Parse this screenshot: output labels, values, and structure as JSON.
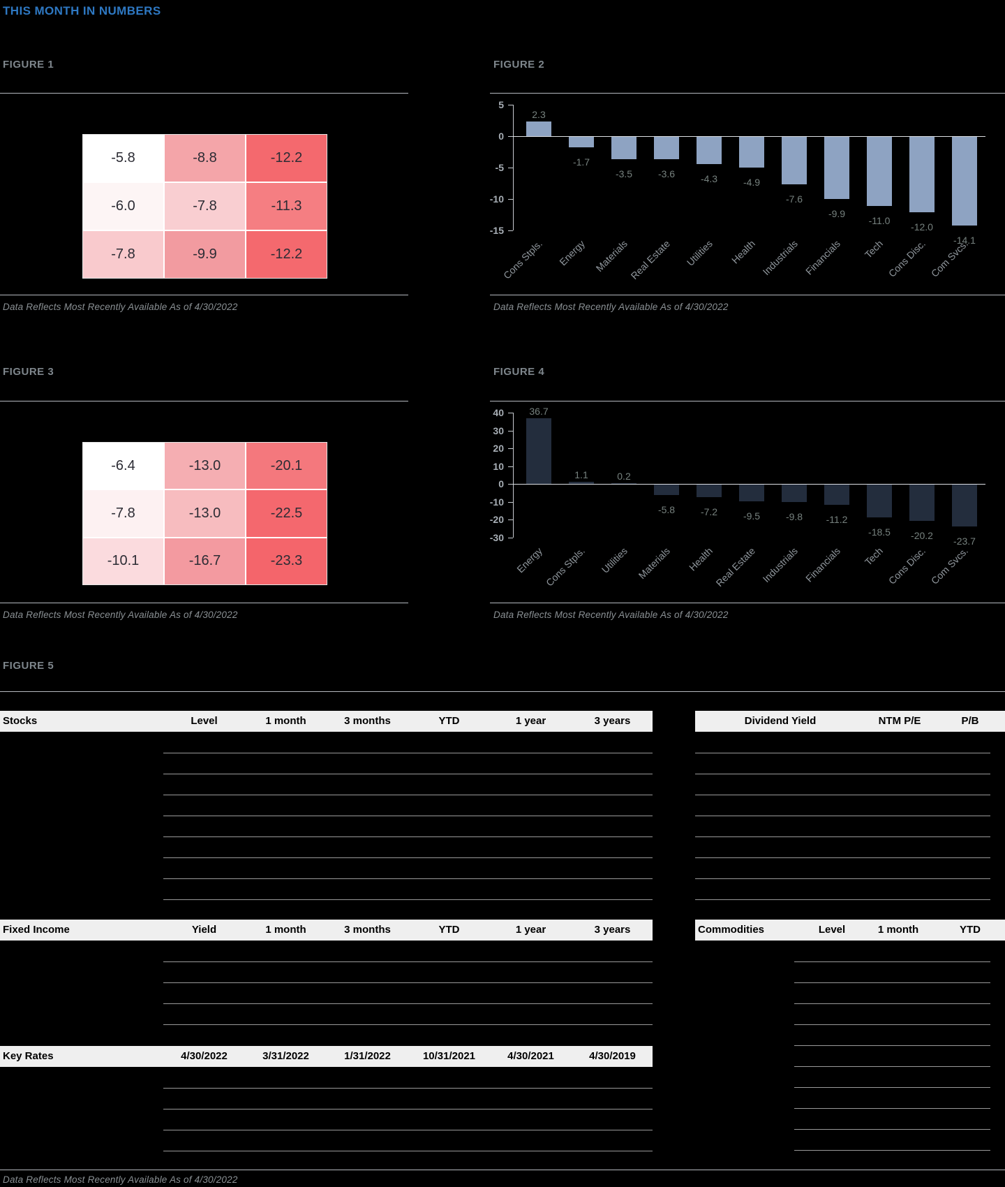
{
  "page": {
    "title": "THIS MONTH IN NUMBERS",
    "footer_note": "Data Reflects Most Recently Available As of 4/30/2022"
  },
  "footnote_text": "Data Reflects Most Recently Available As of 4/30/2022",
  "chart_data": [
    {
      "id": "fig1",
      "type": "heatmap",
      "title": "FIGURE 1",
      "rows": [
        [
          "-5.8",
          "-8.8",
          "-12.2"
        ],
        [
          "-6.0",
          "-7.8",
          "-11.3"
        ],
        [
          "-7.8",
          "-9.9",
          "-12.2"
        ]
      ],
      "values": [
        [
          -5.8,
          -8.8,
          -12.2
        ],
        [
          -6.0,
          -7.8,
          -11.3
        ],
        [
          -7.8,
          -9.9,
          -12.2
        ]
      ],
      "cell_colors": [
        [
          "#ffffff",
          "#f4a5a9",
          "#f4696e"
        ],
        [
          "#fdf5f5",
          "#f9ced1",
          "#f57e82"
        ],
        [
          "#f9cacd",
          "#f29ba0",
          "#f4696e"
        ]
      ],
      "footnote": "Data Reflects Most Recently Available As of 4/30/2022"
    },
    {
      "id": "fig2",
      "type": "bar",
      "title": "FIGURE 2",
      "categories": [
        "Cons Stpls.",
        "Energy",
        "Materials",
        "Real Estate",
        "Utilities",
        "Health",
        "Industrials",
        "Financials",
        "Tech",
        "Cons Disc.",
        "Com Svcs."
      ],
      "values": [
        2.3,
        -1.7,
        -3.5,
        -3.6,
        -4.3,
        -4.9,
        -7.6,
        -9.9,
        -11.0,
        -12.0,
        -14.1
      ],
      "value_labels": [
        "2.3",
        "-1.7",
        "-3.5",
        "-3.6",
        "-4.3",
        "-4.9",
        "-7.6",
        "-9.9",
        "-11.0",
        "-12.0",
        "-14.1"
      ],
      "yticks": [
        5,
        0,
        -5,
        -10,
        -15
      ],
      "ylim": [
        -15,
        5
      ],
      "bar_color": "#8ea3c2",
      "grid": false,
      "legend": false,
      "footnote": "Data Reflects Most Recently Available As of 4/30/2022"
    },
    {
      "id": "fig3",
      "type": "heatmap",
      "title": "FIGURE 3",
      "rows": [
        [
          "-6.4",
          "-13.0",
          "-20.1"
        ],
        [
          "-7.8",
          "-13.0",
          "-22.5"
        ],
        [
          "-10.1",
          "-16.7",
          "-23.3"
        ]
      ],
      "values": [
        [
          -6.4,
          -13.0,
          -20.1
        ],
        [
          -7.8,
          -13.0,
          -22.5
        ],
        [
          -10.1,
          -16.7,
          -23.3
        ]
      ],
      "cell_colors": [
        [
          "#ffffff",
          "#f5aeb2",
          "#f4787d"
        ],
        [
          "#fdf1f2",
          "#f7bcbf",
          "#f4686e"
        ],
        [
          "#fbdbde",
          "#f39aa0",
          "#f4656b"
        ]
      ],
      "footnote": "Data Reflects Most Recently Available As of 4/30/2022"
    },
    {
      "id": "fig4",
      "type": "bar",
      "title": "FIGURE 4",
      "categories": [
        "Energy",
        "Cons Stpls.",
        "Utilities",
        "Materials",
        "Health",
        "Real Estate",
        "Industrials",
        "Financials",
        "Tech",
        "Cons Disc.",
        "Com Svcs."
      ],
      "values": [
        36.7,
        1.1,
        0.2,
        -5.8,
        -7.2,
        -9.5,
        -9.8,
        -11.2,
        -18.5,
        -20.2,
        -23.7
      ],
      "value_labels": [
        "36.7",
        "1.1",
        "0.2",
        "-5.8",
        "-7.2",
        "-9.5",
        "-9.8",
        "-11.2",
        "-18.5",
        "-20.2",
        "-23.7"
      ],
      "yticks": [
        40,
        30,
        20,
        10,
        0,
        -10,
        -20,
        -30
      ],
      "ylim": [
        -30,
        40
      ],
      "bar_color": "#232d3d",
      "grid": false,
      "legend": false,
      "footnote": "Data Reflects Most Recently Available As of 4/30/2022"
    },
    {
      "id": "fig5",
      "type": "table",
      "title": "FIGURE 5",
      "tables": {
        "stocks": {
          "headers": [
            "Stocks",
            "Level",
            "1 month",
            "3 months",
            "YTD",
            "1 year",
            "3 years"
          ],
          "row_count": 8,
          "rows": []
        },
        "valuation": {
          "headers": [
            "Dividend Yield",
            "NTM P/E",
            "P/B"
          ],
          "row_count": 8,
          "rows": []
        },
        "fixed_income": {
          "headers": [
            "Fixed Income",
            "Yield",
            "1 month",
            "3 months",
            "YTD",
            "1 year",
            "3 years"
          ],
          "row_count": 4,
          "rows": []
        },
        "commodities": {
          "headers": [
            "Commodities",
            "Level",
            "1 month",
            "YTD"
          ],
          "row_count": 10,
          "rows": []
        },
        "key_rates": {
          "headers": [
            "Key Rates",
            "4/30/2022",
            "3/31/2022",
            "1/31/2022",
            "10/31/2021",
            "4/30/2021",
            "4/30/2019"
          ],
          "row_count": 4,
          "rows": []
        }
      },
      "footnote": "Data Reflects Most Recently Available As of 4/30/2022"
    }
  ]
}
